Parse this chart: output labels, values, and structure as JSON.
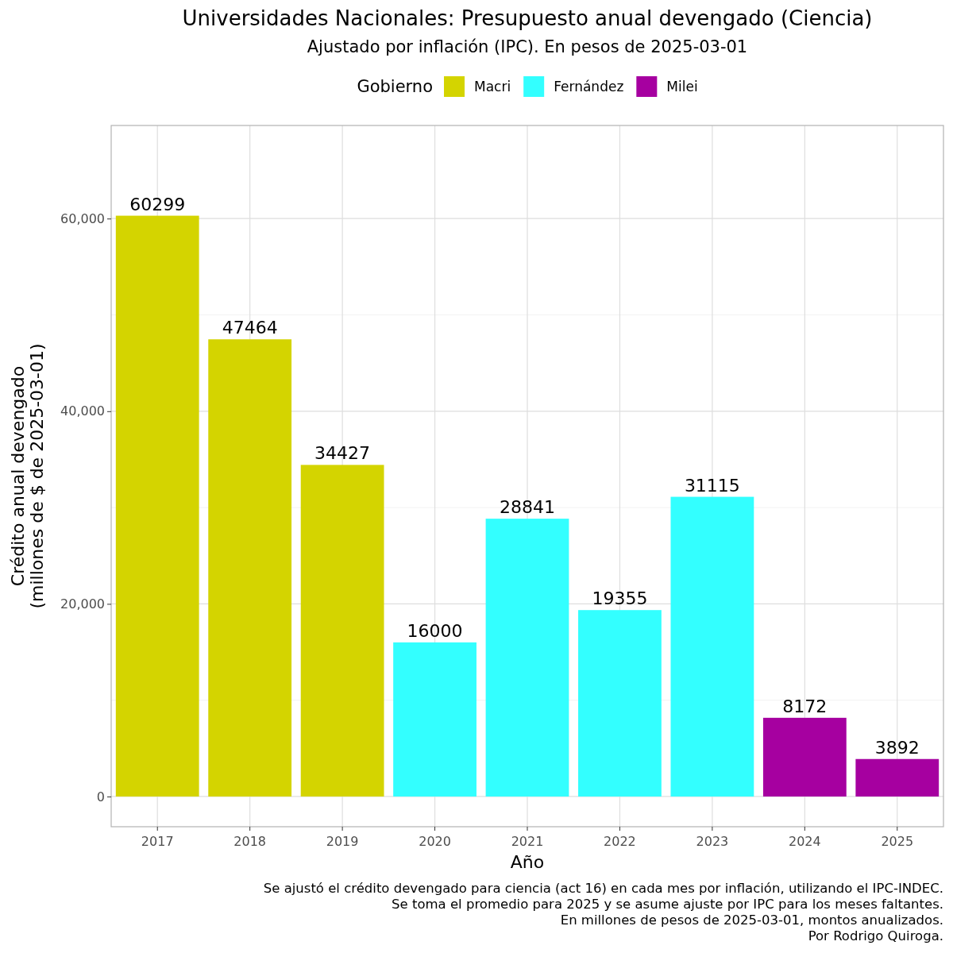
{
  "chart_data": {
    "type": "bar",
    "title": "Universidades Nacionales: Presupuesto anual devengado (Ciencia)",
    "subtitle": "Ajustado por inflación (IPC). En pesos de 2025-03-01",
    "xlabel": "Año",
    "ylabel": "Crédito anual devengado\n(millones de $ de 2025-03-01)",
    "legend_title": "Gobierno",
    "categories": [
      "2017",
      "2018",
      "2019",
      "2020",
      "2021",
      "2022",
      "2023",
      "2024",
      "2025"
    ],
    "series": [
      {
        "name": "Macri",
        "color": "#d4d400",
        "values": [
          60299,
          47464,
          34427,
          null,
          null,
          null,
          null,
          null,
          null
        ]
      },
      {
        "name": "Fernández",
        "color": "#33ffff",
        "values": [
          null,
          null,
          null,
          16000,
          28841,
          19355,
          31115,
          null,
          null
        ]
      },
      {
        "name": "Milei",
        "color": "#a600a0",
        "values": [
          null,
          null,
          null,
          null,
          null,
          null,
          null,
          8172,
          3892
        ]
      }
    ],
    "data_labels": true,
    "ylim": [
      -3137,
      69665
    ],
    "yticks": [
      {
        "value": 0,
        "label": "0"
      },
      {
        "value": 20000,
        "label": "20,000"
      },
      {
        "value": 40000,
        "label": "40,000"
      },
      {
        "value": 60000,
        "label": "60,000"
      }
    ],
    "grid": true,
    "legend": "top",
    "annotations": [
      "Se ajustó el crédito devengado para ciencia (act 16) en cada mes por inflación, utilizando el IPC-INDEC.",
      "Se toma el promedio para 2025 y se asume ajuste por IPC para los meses faltantes.",
      "En millones de pesos de 2025-03-01, montos anualizados.",
      "Por Rodrigo Quiroga."
    ]
  }
}
